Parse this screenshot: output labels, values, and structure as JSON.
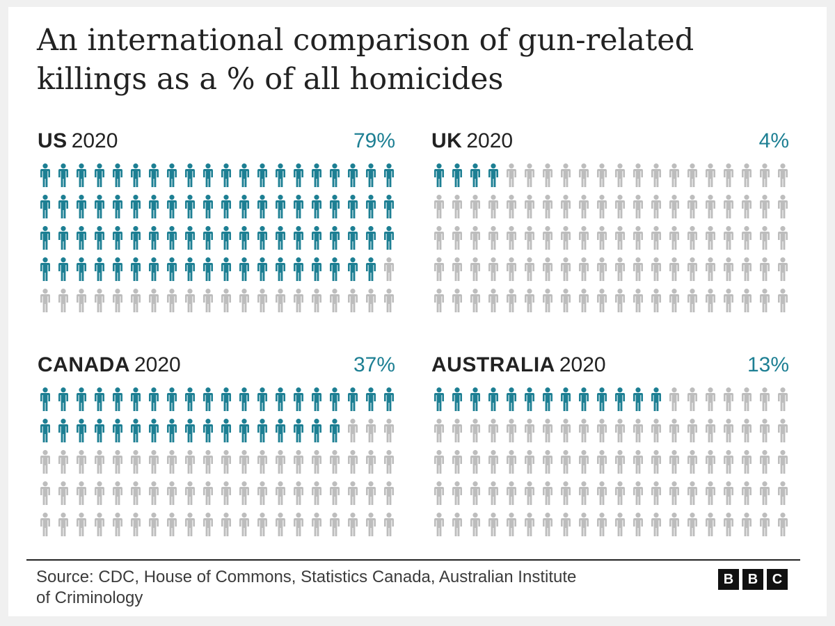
{
  "title_lines": [
    "An international comparison of gun-related",
    "killings as a % of all homicides"
  ],
  "source": {
    "line1": "Source: CDC, House of Commons, Statistics Canada, Australian Institute",
    "line2": "of Criminology"
  },
  "logo": [
    "B",
    "B",
    "C"
  ],
  "colors": {
    "highlight": "#1d7f93",
    "base": "#bdbdbd"
  },
  "icon": "person-icon",
  "chart_data": {
    "type": "pictogram",
    "icons_per_panel": 100,
    "rows": 5,
    "columns": 20,
    "panels": [
      {
        "country": "US",
        "year": "2020",
        "value": 79,
        "label": "79%"
      },
      {
        "country": "UK",
        "year": "2020",
        "value": 4,
        "label": "4%"
      },
      {
        "country": "CANADA",
        "year": "2020",
        "value": 37,
        "label": "37%"
      },
      {
        "country": "AUSTRALIA",
        "year": "2020",
        "value": 13,
        "label": "13%"
      }
    ]
  }
}
